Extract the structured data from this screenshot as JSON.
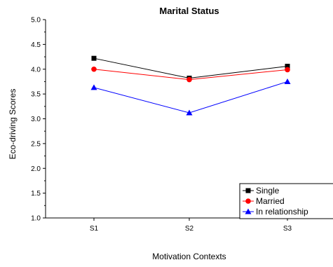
{
  "chart_data": {
    "type": "line",
    "title": "Marital Status",
    "xlabel": "Motivation Contexts",
    "ylabel": "Eco-driving Scores",
    "categories": [
      "S1",
      "S2",
      "S3"
    ],
    "ylim": [
      1.0,
      5.0
    ],
    "yticks": [
      "1.0",
      "1.5",
      "2.0",
      "2.5",
      "3.0",
      "3.5",
      "4.0",
      "4.5",
      "5.0"
    ],
    "grid": false,
    "legend_position": "bottom-right",
    "series": [
      {
        "name": "Single",
        "values": [
          4.22,
          3.82,
          4.06
        ],
        "color": "#000000",
        "marker": "square"
      },
      {
        "name": "Married",
        "values": [
          4.0,
          3.79,
          3.99
        ],
        "color": "#ff0000",
        "marker": "circle"
      },
      {
        "name": "In relationship",
        "values": [
          3.63,
          3.12,
          3.75
        ],
        "color": "#0000ff",
        "marker": "triangle"
      }
    ]
  }
}
